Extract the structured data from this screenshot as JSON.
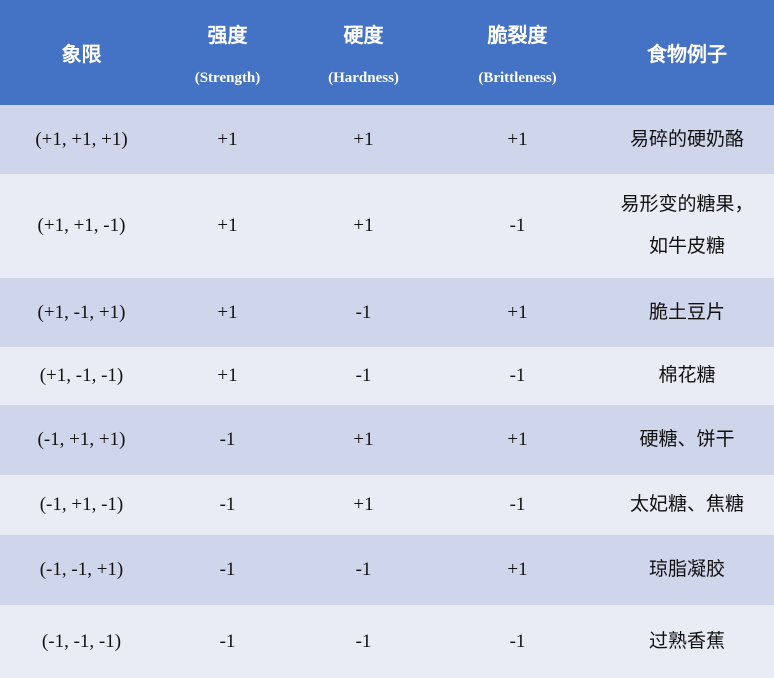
{
  "colors": {
    "header": "#4472C4",
    "row_odd": "#CFD5EA",
    "row_even": "#E9EBF5"
  },
  "headers": [
    {
      "zh": "象限",
      "en": ""
    },
    {
      "zh": "强度",
      "en": "(Strength)"
    },
    {
      "zh": "硬度",
      "en": "(Hardness)"
    },
    {
      "zh": "脆裂度",
      "en": "(Brittleness)"
    },
    {
      "zh": "食物例子",
      "en": ""
    }
  ],
  "rows": [
    {
      "quadrant": "(+1, +1, +1)",
      "strength": "+1",
      "hardness": "+1",
      "brittleness": "+1",
      "example": "易碎的硬奶酪",
      "example2": ""
    },
    {
      "quadrant": "(+1, +1, -1)",
      "strength": "+1",
      "hardness": "+1",
      "brittleness": "-1",
      "example": "易形变的糖果，",
      "example2": "如牛皮糖"
    },
    {
      "quadrant": "(+1, -1, +1)",
      "strength": "+1",
      "hardness": "-1",
      "brittleness": "+1",
      "example": "脆土豆片",
      "example2": ""
    },
    {
      "quadrant": "(+1, -1, -1)",
      "strength": "+1",
      "hardness": "-1",
      "brittleness": "-1",
      "example": "棉花糖",
      "example2": ""
    },
    {
      "quadrant": "(-1, +1, +1)",
      "strength": "-1",
      "hardness": "+1",
      "brittleness": "+1",
      "example": "硬糖、饼干",
      "example2": ""
    },
    {
      "quadrant": "(-1, +1, -1)",
      "strength": "-1",
      "hardness": "+1",
      "brittleness": "-1",
      "example": "太妃糖、焦糖",
      "example2": ""
    },
    {
      "quadrant": "(-1, -1, +1)",
      "strength": "-1",
      "hardness": "-1",
      "brittleness": "+1",
      "example": "琼脂凝胶",
      "example2": ""
    },
    {
      "quadrant": "(-1, -1, -1)",
      "strength": "-1",
      "hardness": "-1",
      "brittleness": "-1",
      "example": "过熟香蕉",
      "example2": ""
    }
  ]
}
